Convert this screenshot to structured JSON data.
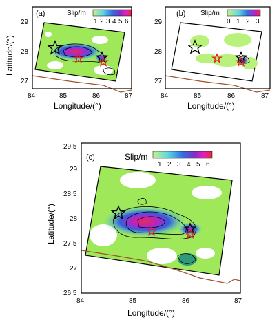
{
  "figure": {
    "panels": [
      {
        "id": "a",
        "label": "(a)",
        "colorbar": {
          "title": "Slip/m",
          "ticks": [
            "1",
            "2",
            "3",
            "4",
            "5",
            "6"
          ]
        },
        "xlabel": "Longitude/(°)",
        "ylabel": "Latitude/(°)",
        "xticks": [
          "84",
          "85",
          "86",
          "87"
        ],
        "yticks": [
          "27",
          "28",
          "29"
        ]
      },
      {
        "id": "b",
        "label": "(b)",
        "colorbar": {
          "title": "Slip/m",
          "ticks": [
            "0",
            "1",
            "2",
            "3"
          ]
        },
        "xlabel": "Longitude/(°)",
        "ylabel": "",
        "xticks": [
          "84",
          "85",
          "86",
          "87"
        ],
        "yticks": [
          "27",
          "28",
          "29"
        ]
      },
      {
        "id": "c",
        "label": "(c)",
        "colorbar": {
          "title": "Slip/m",
          "ticks": [
            "1",
            "2",
            "3",
            "4",
            "5",
            "6"
          ]
        },
        "xlabel": "Longitude/(°)",
        "ylabel": "Latitude/(°)",
        "xticks": [
          "84",
          "85",
          "86",
          "87"
        ],
        "yticks": [
          "26.5",
          "27",
          "27.5",
          "28",
          "28.5",
          "29",
          "29.5"
        ]
      }
    ],
    "markers": {
      "black_star_color": "#000000",
      "red_star_color": "#e02020",
      "boundary_color": "#a0522d"
    },
    "colors": {
      "low_slip": "#b8f27a",
      "background_green": "#9ee85a",
      "zero_slip": "#ffffff",
      "mid_slip": "#3aa0e0",
      "high_slip": "#c020c0",
      "peak_slip": "#e03040"
    }
  }
}
